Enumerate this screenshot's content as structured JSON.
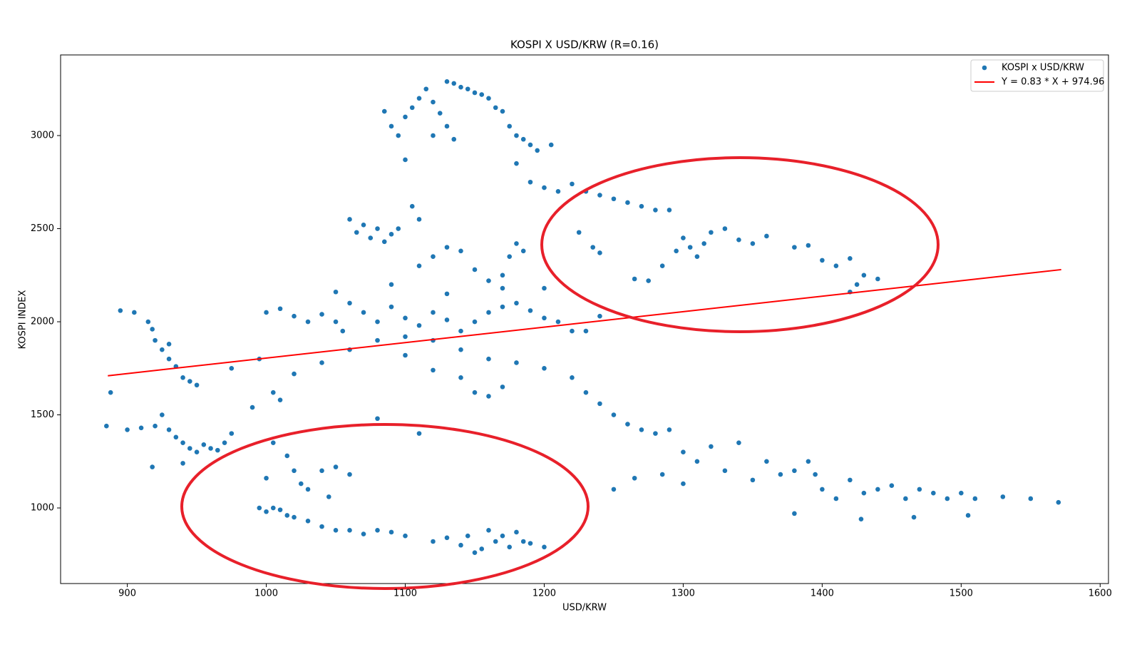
{
  "chart_data": {
    "type": "scatter",
    "title": "KOSPI X USD/KRW (R=0.16)",
    "x_label": "USD/KRW",
    "y_label": "KOSPI INDEX",
    "xlim": [
      852,
      1606
    ],
    "ylim": [
      594,
      3433
    ],
    "xticks": [
      900,
      1000,
      1100,
      1200,
      1300,
      1400,
      1500,
      1600
    ],
    "yticks": [
      1000,
      1500,
      2000,
      2500,
      3000
    ],
    "grid": false,
    "legend": "upper right",
    "series": [
      {
        "name": "KOSPI x USD/KRW",
        "color": "#1f77b4",
        "type": "scatter",
        "x": [
          1100,
          1105,
          1110,
          1115,
          1120,
          1125,
          1130,
          1135,
          1140,
          1145,
          1150,
          1155,
          1160,
          1165,
          1170,
          1175,
          1180,
          1185,
          1190,
          1195,
          1205,
          1085,
          1090,
          1095,
          1130,
          1135,
          1120,
          1100,
          1180,
          1190,
          1200,
          1210,
          1220,
          1230,
          1240,
          1250,
          1260,
          1270,
          1280,
          1290,
          1225,
          1235,
          1240,
          1265,
          1275,
          1285,
          1295,
          1300,
          1305,
          1310,
          1315,
          1320,
          1330,
          1340,
          1350,
          1360,
          1380,
          1390,
          1400,
          1410,
          1420,
          1425,
          1430,
          1440,
          1420,
          1065,
          1070,
          1075,
          1080,
          1085,
          1090,
          1060,
          1095,
          1110,
          1120,
          1130,
          1140,
          1150,
          1160,
          1170,
          1175,
          1180,
          1185,
          1110,
          1105,
          1000,
          1010,
          1020,
          1030,
          1040,
          1050,
          1055,
          1060,
          1070,
          1080,
          1090,
          1100,
          1110,
          1120,
          1130,
          1140,
          1150,
          1160,
          1170,
          1180,
          1190,
          1200,
          1210,
          1220,
          1230,
          1240,
          1080,
          1100,
          1120,
          1140,
          1160,
          1180,
          1200,
          1220,
          1100,
          1060,
          1040,
          1020,
          1005,
          1010,
          990,
          975,
          995,
          1120,
          1140,
          1150,
          1160,
          1170,
          1230,
          1240,
          1250,
          1260,
          1270,
          1280,
          1290,
          1050,
          1090,
          1130,
          1170,
          1200,
          895,
          905,
          915,
          918,
          920,
          925,
          930,
          935,
          940,
          945,
          950,
          930,
          888,
          900,
          910,
          920,
          925,
          930,
          935,
          940,
          945,
          950,
          955,
          960,
          965,
          970,
          975,
          885,
          918,
          940,
          995,
          1000,
          1005,
          1010,
          1015,
          1020,
          1030,
          1040,
          1050,
          1060,
          1070,
          1080,
          1090,
          1100,
          1120,
          1130,
          1140,
          1145,
          1150,
          1155,
          1160,
          1165,
          1170,
          1175,
          1180,
          1185,
          1190,
          1200,
          1005,
          1015,
          1020,
          1025,
          1030,
          1040,
          1045,
          1050,
          1060,
          1000,
          1080,
          1110,
          1300,
          1310,
          1320,
          1330,
          1340,
          1350,
          1360,
          1370,
          1380,
          1390,
          1395,
          1400,
          1410,
          1420,
          1430,
          1440,
          1450,
          1460,
          1470,
          1480,
          1490,
          1500,
          1510,
          1530,
          1550,
          1570,
          1380,
          1428,
          1466,
          1505,
          1265,
          1285,
          1300,
          1250
        ],
        "values": [
          3100,
          3150,
          3200,
          3250,
          3180,
          3120,
          3290,
          3280,
          3260,
          3250,
          3230,
          3220,
          3200,
          3150,
          3130,
          3050,
          3000,
          2980,
          2950,
          2920,
          2950,
          3130,
          3050,
          3000,
          3050,
          2980,
          3000,
          2870,
          2850,
          2750,
          2720,
          2700,
          2740,
          2700,
          2680,
          2660,
          2640,
          2620,
          2600,
          2600,
          2480,
          2400,
          2370,
          2230,
          2220,
          2300,
          2380,
          2450,
          2400,
          2350,
          2420,
          2480,
          2500,
          2440,
          2420,
          2460,
          2400,
          2410,
          2330,
          2300,
          2340,
          2200,
          2250,
          2230,
          2160,
          2480,
          2520,
          2450,
          2500,
          2430,
          2470,
          2550,
          2500,
          2300,
          2350,
          2400,
          2380,
          2280,
          2220,
          2250,
          2350,
          2420,
          2380,
          2550,
          2620,
          2050,
          2070,
          2030,
          2000,
          2040,
          2000,
          1950,
          2100,
          2050,
          2000,
          2080,
          2020,
          1980,
          2050,
          2010,
          1950,
          2000,
          2050,
          2080,
          2100,
          2060,
          2020,
          2000,
          1950,
          1950,
          2030,
          1900,
          1920,
          1900,
          1850,
          1800,
          1780,
          1750,
          1700,
          1820,
          1850,
          1780,
          1720,
          1620,
          1580,
          1540,
          1750,
          1800,
          1740,
          1700,
          1620,
          1600,
          1650,
          1620,
          1560,
          1500,
          1450,
          1420,
          1400,
          1420,
          2160,
          2200,
          2150,
          2180,
          2180,
          2060,
          2050,
          2000,
          1960,
          1900,
          1850,
          1800,
          1760,
          1700,
          1680,
          1660,
          1880,
          1620,
          1420,
          1430,
          1440,
          1500,
          1420,
          1380,
          1350,
          1320,
          1300,
          1340,
          1320,
          1310,
          1350,
          1400,
          1440,
          1220,
          1240,
          1000,
          980,
          1000,
          990,
          960,
          950,
          930,
          900,
          880,
          880,
          860,
          880,
          870,
          850,
          820,
          840,
          800,
          850,
          760,
          780,
          880,
          820,
          850,
          790,
          870,
          820,
          810,
          790,
          1350,
          1280,
          1200,
          1130,
          1100,
          1200,
          1060,
          1220,
          1180,
          1160,
          1480,
          1400,
          1300,
          1250,
          1330,
          1200,
          1350,
          1150,
          1250,
          1180,
          1200,
          1250,
          1180,
          1100,
          1050,
          1150,
          1080,
          1100,
          1120,
          1050,
          1100,
          1080,
          1050,
          1080,
          1050,
          1060,
          1050,
          1030,
          970,
          940,
          950,
          960,
          1160,
          1180,
          1130,
          1100
        ]
      },
      {
        "name": "Y = 0.83 * X + 974.96",
        "color": "#ff0000",
        "type": "line",
        "x": [
          886,
          1572
        ],
        "values": [
          1710,
          2280
        ]
      }
    ]
  }
}
